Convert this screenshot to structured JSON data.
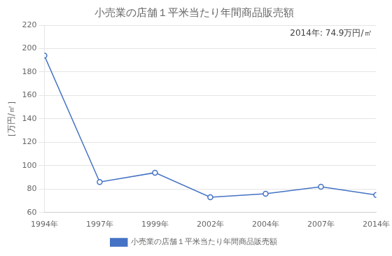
{
  "chart_data": {
    "type": "line",
    "title": "小売業の店舗１平米当たり年間商品販売額",
    "y_label": "［万円/㎡］",
    "annotation": "2014年: 74.9万円/㎡",
    "categories": [
      "1994年",
      "1997年",
      "1999年",
      "2002年",
      "2004年",
      "2007年",
      "2014年"
    ],
    "series": [
      {
        "name": "小売業の店舗１平米当たり年間商品販売額",
        "color": "#4472C4",
        "marker": "circle",
        "values": [
          194.0,
          86.0,
          94.0,
          73.0,
          76.0,
          82.0,
          74.9
        ]
      }
    ],
    "ylim": [
      60,
      220
    ],
    "yticks": [
      60,
      80,
      100,
      120,
      140,
      160,
      180,
      200,
      220
    ],
    "grid": "y",
    "legend": "bottom"
  }
}
